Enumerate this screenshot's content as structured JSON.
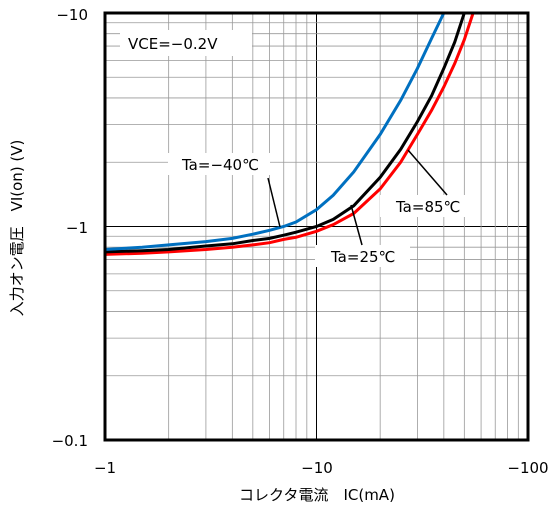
{
  "chart_data": {
    "type": "line",
    "title": "",
    "xlabel": "コレクタ電流　IC(mA)",
    "ylabel": "入力オン電圧　VI(on) (V)",
    "x_scale": "log",
    "y_scale": "log",
    "xlim": [
      -1,
      -100
    ],
    "ylim": [
      -0.1,
      -10
    ],
    "x_tick_labels": [
      "−1",
      "−10",
      "−100"
    ],
    "y_tick_labels": [
      "−0.1",
      "−1",
      "−10"
    ],
    "grid": true,
    "annotations": [
      "VCE=−0.2V"
    ],
    "series": [
      {
        "name": "Ta=−40℃",
        "color": "#0070c0",
        "label_pos": [
          -4.2,
          -2.0
        ],
        "x": [
          -1,
          -1.5,
          -2,
          -3,
          -4,
          -5,
          -6,
          -7,
          -8,
          -10,
          -12,
          -15,
          -20,
          -25,
          -30,
          -35,
          -40
        ],
        "y": [
          -0.78,
          -0.8,
          -0.82,
          -0.85,
          -0.88,
          -0.92,
          -0.96,
          -1.0,
          -1.05,
          -1.2,
          -1.4,
          -1.8,
          -2.7,
          -3.9,
          -5.5,
          -7.6,
          -10
        ]
      },
      {
        "name": "Ta=25℃",
        "color": "#000000",
        "label_pos": [
          -26,
          -0.71
        ],
        "x": [
          -1,
          -1.5,
          -2,
          -3,
          -4,
          -5,
          -6,
          -7,
          -8,
          -10,
          -12,
          -15,
          -20,
          -25,
          -30,
          -35,
          -40,
          -45,
          -50
        ],
        "y": [
          -0.76,
          -0.77,
          -0.78,
          -0.81,
          -0.83,
          -0.86,
          -0.88,
          -0.91,
          -0.94,
          -1.0,
          -1.08,
          -1.25,
          -1.7,
          -2.3,
          -3.1,
          -4.1,
          -5.5,
          -7.3,
          -10
        ]
      },
      {
        "name": "Ta=85℃",
        "color": "#ff0000",
        "label_pos": [
          -40,
          -1.15
        ],
        "x": [
          -1,
          -1.5,
          -2,
          -3,
          -4,
          -5,
          -6,
          -7,
          -8,
          -10,
          -12,
          -15,
          -20,
          -25,
          -30,
          -35,
          -40,
          -45,
          -50,
          -55
        ],
        "y": [
          -0.74,
          -0.75,
          -0.76,
          -0.78,
          -0.8,
          -0.82,
          -0.84,
          -0.87,
          -0.89,
          -0.95,
          -1.02,
          -1.15,
          -1.5,
          -2.0,
          -2.7,
          -3.5,
          -4.5,
          -5.8,
          -7.5,
          -10
        ]
      }
    ]
  }
}
